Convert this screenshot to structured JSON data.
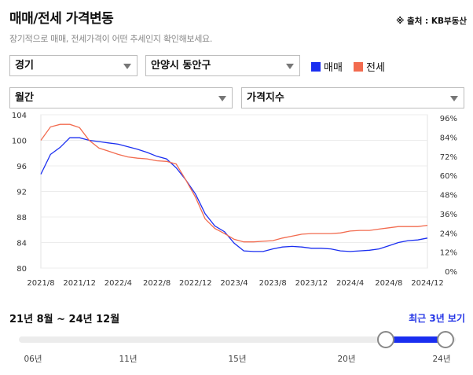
{
  "header": {
    "title": "매매/전세 가격변동",
    "source": "※ 출처 : KB부동산",
    "subtitle": "장기적으로 매매, 전세가격이 어떤 추세인지 확인해보세요."
  },
  "filters": {
    "region": "경기",
    "district": "안양시 동안구",
    "period": "월간",
    "metric": "가격지수"
  },
  "colors": {
    "sale": "#1a2ef0",
    "jeonse": "#f26b4f"
  },
  "chart_data": {
    "type": "line",
    "x": [
      "2021-08",
      "2021-09",
      "2021-10",
      "2021-11",
      "2021-12",
      "2022-01",
      "2022-02",
      "2022-03",
      "2022-04",
      "2022-05",
      "2022-06",
      "2022-07",
      "2022-08",
      "2022-09",
      "2022-10",
      "2022-11",
      "2022-12",
      "2023-01",
      "2023-02",
      "2023-03",
      "2023-04",
      "2023-05",
      "2023-06",
      "2023-07",
      "2023-08",
      "2023-09",
      "2023-10",
      "2023-11",
      "2023-12",
      "2024-01",
      "2024-02",
      "2024-03",
      "2024-04",
      "2024-05",
      "2024-06",
      "2024-07",
      "2024-08",
      "2024-09",
      "2024-10",
      "2024-11",
      "2024-12"
    ],
    "x_tick_labels": [
      "2021/8",
      "2021/12",
      "2022/4",
      "2022/8",
      "2022/12",
      "2023/4",
      "2023/8",
      "2023/12",
      "2024/4",
      "2024/8",
      "2024/12"
    ],
    "y_left_ticks": [
      "80",
      "84",
      "88",
      "92",
      "96",
      "100",
      "104"
    ],
    "y_right_ticks": [
      "0%",
      "12%",
      "24%",
      "36%",
      "48%",
      "60%",
      "72%",
      "84%",
      "96%"
    ],
    "ylim": [
      80,
      104
    ],
    "grid": true,
    "legend_position": "top",
    "series": [
      {
        "name": "매매",
        "color": "#1a2ef0",
        "values": [
          94.7,
          97.8,
          98.9,
          100.4,
          100.4,
          100.0,
          99.8,
          99.6,
          99.4,
          99.0,
          98.6,
          98.1,
          97.5,
          97.1,
          95.7,
          93.8,
          91.6,
          88.5,
          86.6,
          85.7,
          83.9,
          82.7,
          82.6,
          82.6,
          83.0,
          83.3,
          83.4,
          83.3,
          83.1,
          83.1,
          83.0,
          82.7,
          82.6,
          82.7,
          82.8,
          83.0,
          83.5,
          84.0,
          84.3,
          84.4,
          84.7
        ]
      },
      {
        "name": "전세",
        "color": "#f26b4f",
        "values": [
          100.0,
          102.1,
          102.5,
          102.5,
          102.0,
          100.0,
          98.8,
          98.3,
          97.8,
          97.4,
          97.2,
          97.1,
          96.8,
          96.7,
          96.3,
          93.8,
          91.1,
          87.7,
          86.2,
          85.4,
          84.5,
          84.1,
          84.1,
          84.2,
          84.3,
          84.7,
          85.0,
          85.3,
          85.4,
          85.4,
          85.4,
          85.5,
          85.8,
          85.9,
          85.9,
          86.1,
          86.3,
          86.5,
          86.5,
          86.5,
          86.7
        ]
      }
    ]
  },
  "range": {
    "text": "21년 8월 ~ 24년 12월",
    "link": "최근 3년 보기",
    "year_labels": [
      "06년",
      "11년",
      "15년",
      "20년",
      "24년"
    ]
  }
}
